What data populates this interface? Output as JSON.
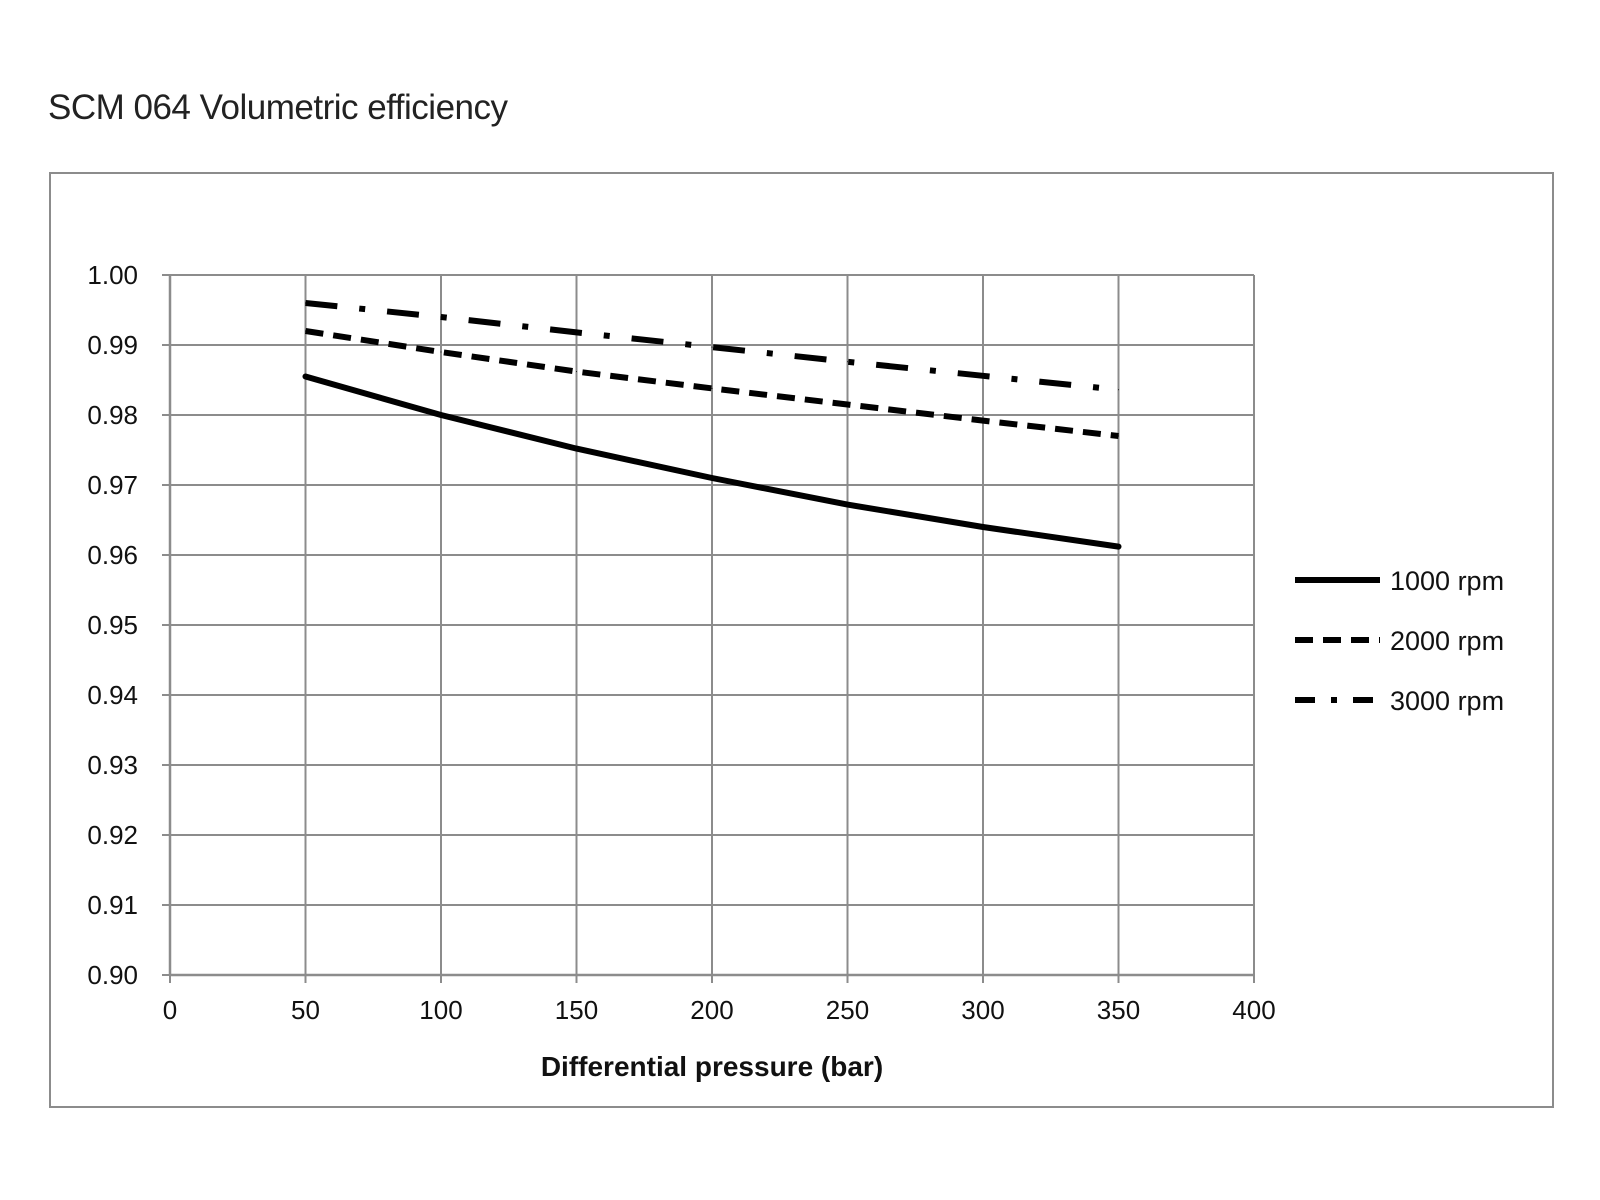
{
  "chart_data": {
    "type": "line",
    "title": "SCM 064 Volumetric efficiency",
    "xlabel": "Differential pressure (bar)",
    "ylabel": "",
    "xlim": [
      0,
      400
    ],
    "ylim": [
      0.9,
      1.0
    ],
    "x_ticks": [
      "0",
      "50",
      "100",
      "150",
      "200",
      "250",
      "300",
      "350",
      "400"
    ],
    "y_ticks": [
      "0.90",
      "0.91",
      "0.92",
      "0.93",
      "0.94",
      "0.95",
      "0.96",
      "0.97",
      "0.98",
      "0.99",
      "1.00"
    ],
    "grid": true,
    "legend_position": "right",
    "x": [
      50,
      100,
      150,
      200,
      250,
      300,
      350
    ],
    "series": [
      {
        "name": "1000 rpm",
        "style": "solid",
        "values": [
          0.9855,
          0.98,
          0.9752,
          0.971,
          0.9672,
          0.964,
          0.9612
        ]
      },
      {
        "name": "2000 rpm",
        "style": "dashed",
        "values": [
          0.992,
          0.989,
          0.9862,
          0.9838,
          0.9815,
          0.9792,
          0.977
        ]
      },
      {
        "name": "3000 rpm",
        "style": "dash-dot",
        "values": [
          0.996,
          0.994,
          0.9918,
          0.9897,
          0.9876,
          0.9856,
          0.9836
        ]
      }
    ],
    "colors": {
      "line": "#000000",
      "grid": "#8c8c8c",
      "axis": "#8c8c8c",
      "frame": "#8c8c8c"
    }
  }
}
